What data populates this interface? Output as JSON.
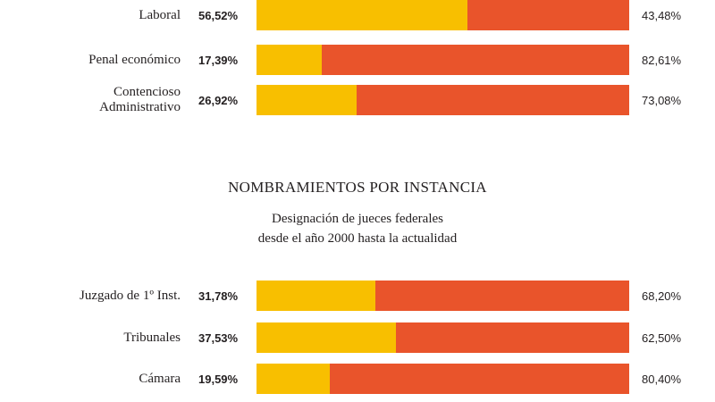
{
  "colors": {
    "first": "#f8bf00",
    "second": "#e9542b"
  },
  "chart_data": [
    {
      "type": "bar",
      "orientation": "horizontal",
      "stacked": true,
      "title": "",
      "categories": [
        "Laboral",
        "Penal económico",
        "Contencioso\nAdministrativo"
      ],
      "series": [
        {
          "values": [
            56.52,
            17.39,
            26.92
          ],
          "labels": [
            "56,52%",
            "17,39%",
            "26,92%"
          ]
        },
        {
          "values": [
            43.48,
            82.61,
            73.08
          ],
          "labels": [
            "43,48%",
            "82,61%",
            "73,08%"
          ]
        }
      ]
    },
    {
      "type": "bar",
      "orientation": "horizontal",
      "stacked": true,
      "title": "NOMBRAMIENTOS POR INSTANCIA",
      "subtitle": [
        "Designación de jueces federales",
        "desde el año 2000 hasta la actualidad"
      ],
      "categories": [
        "Juzgado de 1º Inst.",
        "Tribunales",
        "Cámara"
      ],
      "series": [
        {
          "values": [
            31.78,
            37.53,
            19.59
          ],
          "labels": [
            "31,78%",
            "37,53%",
            "19,59%"
          ]
        },
        {
          "values": [
            68.2,
            62.5,
            80.4
          ],
          "labels": [
            "68,20%",
            "62,50%",
            "80,40%"
          ]
        }
      ]
    }
  ]
}
